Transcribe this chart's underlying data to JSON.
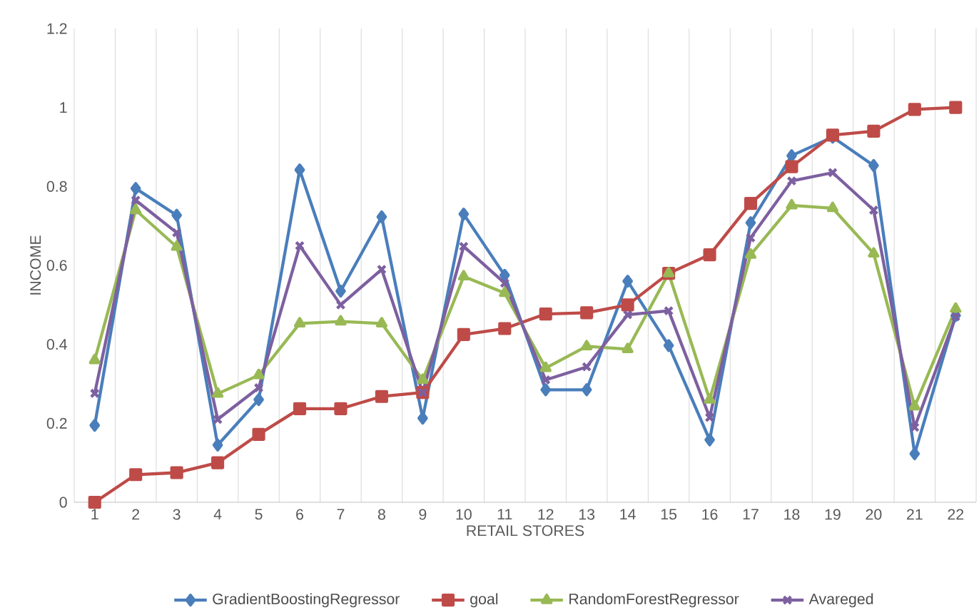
{
  "chart_data": {
    "type": "line",
    "xlabel": "RETAIL STORES",
    "ylabel": "INCOME",
    "categories": [
      "1",
      "2",
      "3",
      "4",
      "5",
      "6",
      "7",
      "8",
      "9",
      "10",
      "11",
      "12",
      "13",
      "14",
      "15",
      "16",
      "17",
      "18",
      "19",
      "20",
      "21",
      "22"
    ],
    "series": [
      {
        "name": "GradientBoostingRegressor",
        "color": "#4a7ebb",
        "marker": "diamond",
        "values": [
          0.195,
          0.795,
          0.727,
          0.145,
          0.26,
          0.842,
          0.535,
          0.723,
          0.213,
          0.73,
          0.575,
          0.285,
          0.285,
          0.56,
          0.397,
          0.158,
          0.708,
          0.878,
          0.925,
          0.853,
          0.123,
          0.473
        ]
      },
      {
        "name": "goal",
        "color": "#be4b48",
        "marker": "square",
        "values": [
          0,
          0.07,
          0.075,
          0.1,
          0.172,
          0.237,
          0.237,
          0.268,
          0.278,
          0.425,
          0.44,
          0.477,
          0.48,
          0.5,
          0.58,
          0.627,
          0.757,
          0.85,
          0.93,
          0.94,
          0.995,
          1.0
        ]
      },
      {
        "name": "RandomForestRegressor",
        "color": "#98b954",
        "marker": "triangle",
        "values": [
          0.36,
          0.74,
          0.647,
          0.275,
          0.322,
          0.453,
          0.458,
          0.453,
          0.31,
          0.572,
          0.53,
          0.34,
          0.395,
          0.388,
          0.58,
          0.26,
          0.627,
          0.752,
          0.745,
          0.63,
          0.243,
          0.49
        ]
      },
      {
        "name": "Avareged",
        "color": "#7d60a0",
        "marker": "cross",
        "values": [
          0.276,
          0.765,
          0.683,
          0.21,
          0.29,
          0.65,
          0.5,
          0.59,
          0.278,
          0.648,
          0.555,
          0.31,
          0.343,
          0.475,
          0.485,
          0.215,
          0.67,
          0.814,
          0.835,
          0.74,
          0.19,
          0.47
        ]
      }
    ],
    "ylim": [
      0,
      1.2
    ],
    "yticks": [
      0,
      0.2,
      0.4,
      0.6,
      0.8,
      1,
      1.2
    ],
    "grid": "x",
    "legend": "bottom",
    "line_style": "solid"
  }
}
